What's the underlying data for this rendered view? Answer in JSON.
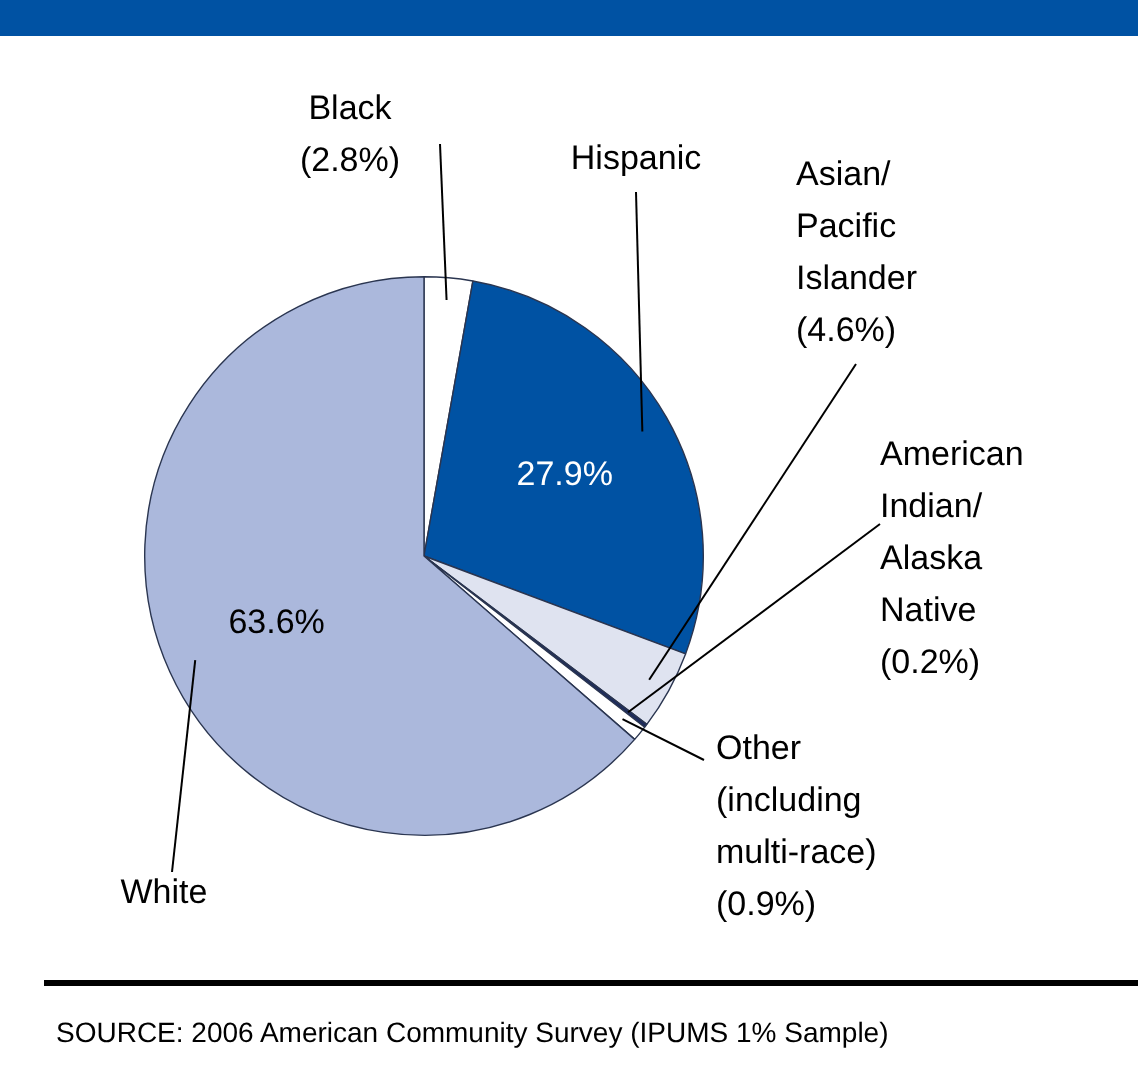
{
  "chart_data": {
    "type": "pie",
    "categories": [
      "Black",
      "Hispanic",
      "Asian/ Pacific Islander",
      "American Indian/ Alaska Native",
      "Other (including multi-race)",
      "White"
    ],
    "values": [
      2.8,
      27.9,
      4.6,
      0.2,
      0.9,
      63.6
    ],
    "colors": [
      "#ffffff",
      "#0052a3",
      "#dfe3f0",
      "#1c2b5e",
      "#ffffff",
      "#abb8dc"
    ],
    "value_labels": [
      "(2.8%)",
      "27.9%",
      "(4.6%)",
      "(0.2%)",
      "(0.9%)",
      "63.6%"
    ],
    "legend": false,
    "annotations": [
      "SOURCE: 2006 American Community Survey (IPUMS 1% Sample)"
    ]
  }
}
